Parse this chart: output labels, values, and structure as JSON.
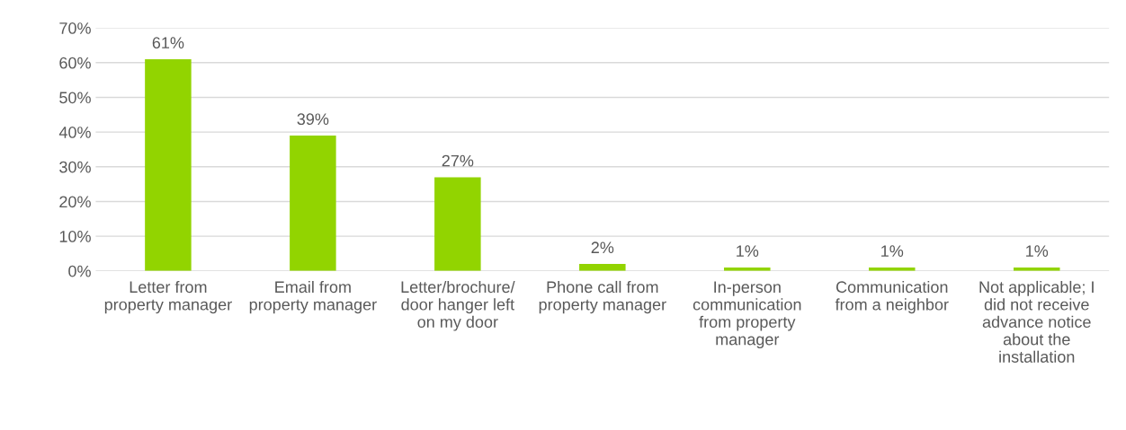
{
  "chart_data": {
    "type": "bar",
    "categories": [
      "Letter from\nproperty manager",
      "Email from\nproperty manager",
      "Letter/brochure/\ndoor hanger left\non my door",
      "Phone call from\nproperty manager",
      "In-person\ncommunication\nfrom property\nmanager",
      "Communication\nfrom a neighbor",
      "Not applicable; I\ndid not receive\nadvance notice\nabout the\ninstallation"
    ],
    "values": [
      61,
      39,
      27,
      2,
      1,
      1,
      1
    ],
    "value_labels": [
      "61%",
      "39%",
      "27%",
      "2%",
      "1%",
      "1%",
      "1%"
    ],
    "color": "#92d400",
    "ylim": [
      0,
      70
    ],
    "yticks": [
      {
        "value": 0,
        "label": "0%"
      },
      {
        "value": 10,
        "label": "10%"
      },
      {
        "value": 20,
        "label": "20%"
      },
      {
        "value": 30,
        "label": "30%"
      },
      {
        "value": 40,
        "label": "40%"
      },
      {
        "value": 50,
        "label": "50%"
      },
      {
        "value": 60,
        "label": "60%"
      },
      {
        "value": 70,
        "label": "70%"
      }
    ],
    "grid": "y",
    "legend": false
  }
}
